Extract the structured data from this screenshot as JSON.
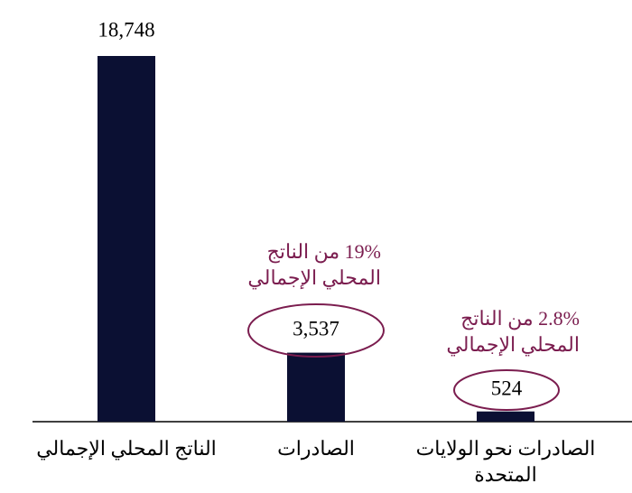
{
  "chart_data": {
    "type": "bar",
    "categories": [
      "الناتج المحلي الإجمالي",
      "الصادرات",
      "الصادرات نحو الولايات المتحدة"
    ],
    "values": [
      18748,
      3537,
      524
    ],
    "value_labels": [
      "18,748",
      "3,537",
      "524"
    ],
    "color": "#0b1033",
    "annotations": [
      "19% من الناتج المحلي الإجمالي",
      "2.8% من الناتج المحلي الإجمالي"
    ],
    "annotation_color": "#7b1d4f"
  }
}
